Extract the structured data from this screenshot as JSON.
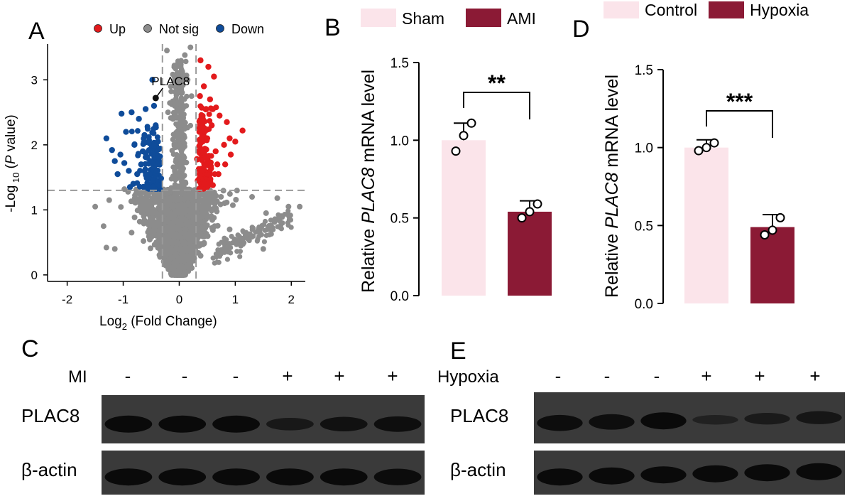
{
  "panels": {
    "A": "A",
    "B": "B",
    "C": "C",
    "D": "D",
    "E": "E"
  },
  "colors": {
    "up": "#e31a1c",
    "not_sig": "#8c8c8c",
    "down": "#0f4c9a",
    "sham": "#fbe4ea",
    "ami": "#8b1a35",
    "blot_bg": "#3a3a3a",
    "band": "#0a0a0a"
  },
  "chart_data": [
    {
      "id": "volcano",
      "type": "scatter",
      "xlabel_main": "Log",
      "xlabel_sub": "2",
      "xlabel_rest": " (Fold Change)",
      "ylabel_main": "-Log",
      "ylabel_sub": " 10",
      "ylabel_open": " (",
      "ylabel_italic": "P",
      "ylabel_rest": " value)",
      "xlim": [
        -2.35,
        2.25
      ],
      "ylim": [
        -0.1,
        3.55
      ],
      "x_ticks": [
        -2,
        -1,
        0,
        1,
        2
      ],
      "y_ticks": [
        0,
        1,
        2,
        3
      ],
      "fc_threshold": [
        -0.3,
        0.3
      ],
      "p_threshold": 1.3,
      "legend": [
        {
          "key": "up",
          "label": "Up"
        },
        {
          "key": "not_sig",
          "label": "Not sig"
        },
        {
          "key": "down",
          "label": "Down"
        }
      ],
      "annotation": {
        "label": "PLAC8",
        "x": -0.42,
        "y": 2.72
      },
      "up_points": [
        [
          0.52,
          3.2
        ],
        [
          0.62,
          3.05
        ],
        [
          0.44,
          2.9
        ],
        [
          0.55,
          2.7
        ],
        [
          0.38,
          3.3
        ],
        [
          0.72,
          2.45
        ],
        [
          0.85,
          2.35
        ],
        [
          0.6,
          2.55
        ],
        [
          1.13,
          2.22
        ],
        [
          1.0,
          2.05
        ],
        [
          0.92,
          1.85
        ],
        [
          0.82,
          1.7
        ],
        [
          0.65,
          1.9
        ],
        [
          0.5,
          2.1
        ],
        [
          0.42,
          2.4
        ],
        [
          0.36,
          2.2
        ],
        [
          0.47,
          1.8
        ],
        [
          0.55,
          1.55
        ],
        [
          0.7,
          1.55
        ],
        [
          0.4,
          1.6
        ],
        [
          0.33,
          1.45
        ],
        [
          0.45,
          1.4
        ],
        [
          0.6,
          1.38
        ],
        [
          0.35,
          1.9
        ],
        [
          0.8,
          2.0
        ],
        [
          0.9,
          2.1
        ],
        [
          0.68,
          1.7
        ],
        [
          0.58,
          2.3
        ],
        [
          0.48,
          2.55
        ],
        [
          0.37,
          2.75
        ]
      ],
      "down_points": [
        [
          -0.48,
          3.0
        ],
        [
          -0.6,
          2.55
        ],
        [
          -0.72,
          2.4
        ],
        [
          -0.85,
          2.5
        ],
        [
          -1.03,
          2.48
        ],
        [
          -1.3,
          2.1
        ],
        [
          -1.2,
          1.92
        ],
        [
          -1.05,
          1.85
        ],
        [
          -0.95,
          2.2
        ],
        [
          -0.8,
          2.0
        ],
        [
          -0.65,
          1.9
        ],
        [
          -0.52,
          1.75
        ],
        [
          -0.42,
          2.3
        ],
        [
          -0.38,
          2.05
        ],
        [
          -0.9,
          1.6
        ],
        [
          -0.75,
          1.55
        ],
        [
          -0.58,
          1.5
        ],
        [
          -0.47,
          1.45
        ],
        [
          -1.1,
          1.55
        ],
        [
          -0.68,
          1.7
        ],
        [
          -0.4,
          1.6
        ],
        [
          -0.35,
          1.38
        ],
        [
          -0.55,
          1.35
        ],
        [
          -0.82,
          1.4
        ],
        [
          -1.15,
          1.75
        ],
        [
          -0.98,
          1.72
        ],
        [
          -0.62,
          2.15
        ],
        [
          -0.45,
          2.6
        ],
        [
          -0.36,
          1.8
        ],
        [
          -0.88,
          1.35
        ]
      ],
      "notsig_points": [
        [
          -0.22,
          3.45
        ],
        [
          0.2,
          3.5
        ],
        [
          0.1,
          3.38
        ],
        [
          -0.05,
          3.2
        ],
        [
          0.15,
          3.0
        ],
        [
          -0.15,
          2.9
        ],
        [
          0.22,
          2.75
        ],
        [
          -0.08,
          2.6
        ],
        [
          0.05,
          2.8
        ],
        [
          -0.2,
          2.5
        ],
        [
          1.75,
          1.18
        ],
        [
          1.95,
          1.05
        ],
        [
          1.55,
          0.95
        ],
        [
          1.3,
          1.2
        ],
        [
          -1.5,
          1.05
        ],
        [
          -1.25,
          1.15
        ],
        [
          1.1,
          0.45
        ],
        [
          1.5,
          0.4
        ],
        [
          -1.3,
          0.42
        ],
        [
          1.62,
          0.7
        ],
        [
          -0.85,
          0.65
        ],
        [
          0.9,
          0.7
        ],
        [
          -1.35,
          0.75
        ],
        [
          -1.15,
          0.4
        ],
        [
          2.15,
          1.05
        ]
      ]
    },
    {
      "id": "bar_B",
      "type": "bar",
      "categories": [
        "Sham",
        "AMI"
      ],
      "values": [
        1.0,
        0.54
      ],
      "errors": [
        0.11,
        0.07
      ],
      "points": [
        [
          0.93,
          1.03,
          1.11
        ],
        [
          0.5,
          0.54,
          0.59
        ]
      ],
      "ylim": [
        0,
        1.5
      ],
      "y_ticks": [
        "0.0",
        "0.5",
        "1.0",
        "1.5"
      ],
      "ylabel_pre": "Relative ",
      "ylabel_italic": "PLAC8",
      "ylabel_post": " mRNA level",
      "significance": "**",
      "legend": [
        "Sham",
        "AMI"
      ]
    },
    {
      "id": "bar_D",
      "type": "bar",
      "categories": [
        "Control",
        "Hypoxia"
      ],
      "values": [
        1.0,
        0.49
      ],
      "errors": [
        0.05,
        0.08
      ],
      "points": [
        [
          0.98,
          1.0,
          1.03
        ],
        [
          0.44,
          0.47,
          0.55
        ]
      ],
      "ylim": [
        0,
        1.5
      ],
      "y_ticks": [
        "0.0",
        "0.5",
        "1.0",
        "1.5"
      ],
      "ylabel_pre": "Relative ",
      "ylabel_italic": "PLAC8",
      "ylabel_post": " mRNA level",
      "significance": "***",
      "legend": [
        "Control",
        "Hypoxia"
      ]
    }
  ],
  "blot_C": {
    "condition_label": "MI",
    "signs": [
      "-",
      "-",
      "-",
      "+",
      "+",
      "+"
    ],
    "rows": [
      {
        "label": "PLAC8",
        "intensity": [
          1.0,
          1.0,
          1.0,
          0.55,
          0.75,
          0.85
        ]
      },
      {
        "label": "β-actin",
        "intensity": [
          1.0,
          1.0,
          1.0,
          1.0,
          1.0,
          0.95
        ]
      }
    ]
  },
  "blot_E": {
    "condition_label": "Hypoxia",
    "signs": [
      "-",
      "-",
      "-",
      "+",
      "+",
      "+"
    ],
    "rows": [
      {
        "label": "PLAC8",
        "intensity": [
          0.9,
          0.85,
          1.0,
          0.25,
          0.45,
          0.6
        ]
      },
      {
        "label": "β-actin",
        "intensity": [
          1.0,
          1.0,
          1.0,
          1.0,
          1.0,
          1.0
        ]
      }
    ]
  }
}
